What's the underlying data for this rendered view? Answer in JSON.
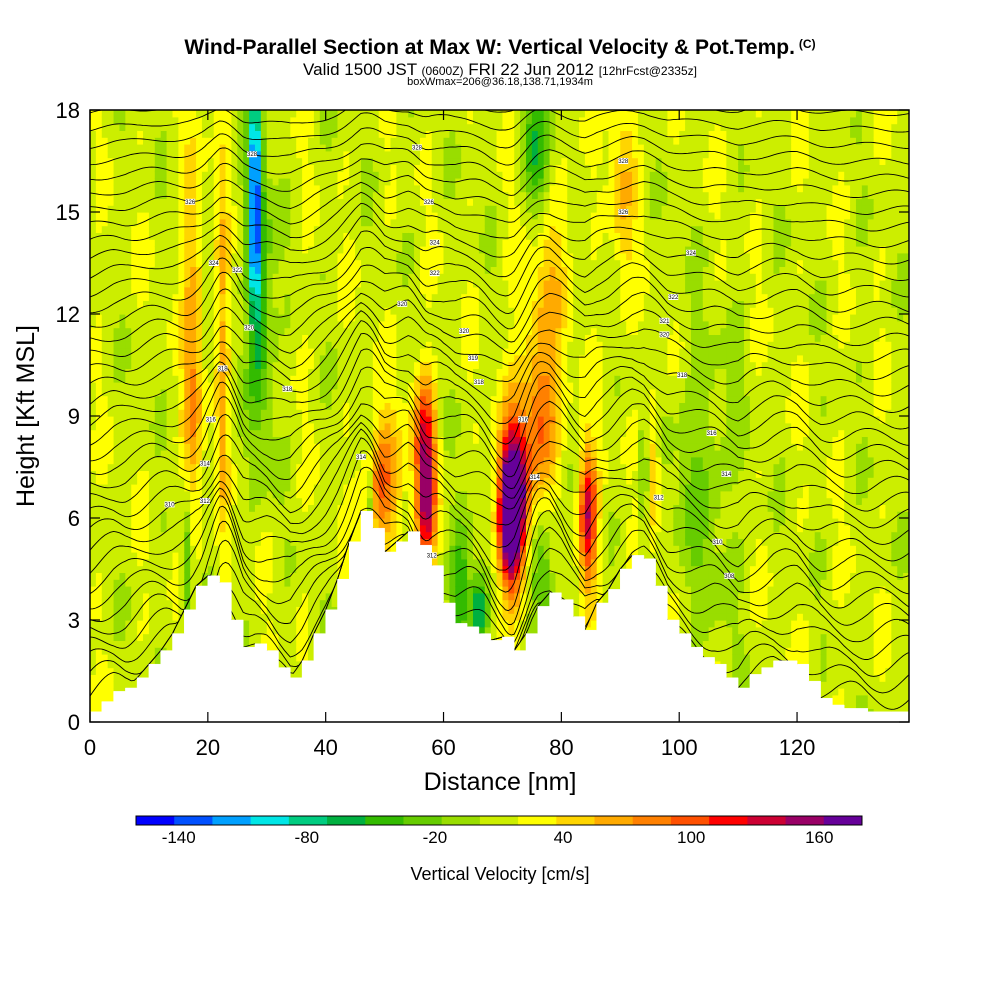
{
  "header": {
    "title": "Wind-Parallel Section at Max W: Vertical Velocity & Pot.Temp.",
    "copyright": "(C)",
    "valid_prefix": "Valid 1500 JST",
    "utc_time": "(0600Z)",
    "valid_date": "FRI 22 Jun 2012",
    "forecast_info": "[12hrFcst@2335z]",
    "box_info": "boxWmax=206@36.18,138.71,1934m"
  },
  "chart_data": {
    "type": "heatmap",
    "xlabel": "Distance [nm]",
    "ylabel": "Height [Kft MSL]",
    "xlim": [
      0,
      139
    ],
    "ylim": [
      0,
      18
    ],
    "x_ticks": [
      0,
      20,
      40,
      60,
      80,
      100,
      120
    ],
    "y_ticks": [
      0,
      3,
      6,
      9,
      12,
      15,
      18
    ],
    "colorbar": {
      "title": "Vertical Velocity [cm/s]",
      "bounds": [
        -160,
        180
      ],
      "labels": [
        -140,
        -80,
        -20,
        40,
        100,
        160
      ],
      "colors": [
        "#0000ff",
        "#0050ff",
        "#00a0ff",
        "#00e6e6",
        "#00cc80",
        "#00b040",
        "#33bb00",
        "#66cc00",
        "#99dd00",
        "#ccee00",
        "#ffff00",
        "#ffd500",
        "#ffaa00",
        "#ff8000",
        "#ff5000",
        "#ff0000",
        "#cc0033",
        "#990066",
        "#660099"
      ]
    },
    "terrain": {
      "x": [
        0,
        2,
        4,
        6,
        8,
        10,
        12,
        14,
        16,
        18,
        20,
        22,
        24,
        26,
        28,
        30,
        32,
        34,
        36,
        38,
        40,
        42,
        44,
        46,
        48,
        50,
        52,
        54,
        56,
        58,
        60,
        62,
        64,
        66,
        68,
        70,
        72,
        74,
        76,
        78,
        80,
        82,
        84,
        86,
        88,
        90,
        92,
        94,
        96,
        98,
        100,
        102,
        104,
        106,
        108,
        110,
        112,
        114,
        116,
        118,
        120,
        122,
        124,
        126,
        128,
        130,
        132,
        134,
        136,
        138
      ],
      "height": [
        0.3,
        0.6,
        0.9,
        1.0,
        1.3,
        1.7,
        2.1,
        2.6,
        3.3,
        4.0,
        4.3,
        4.1,
        3.0,
        2.2,
        2.3,
        2.1,
        1.6,
        1.3,
        1.8,
        2.6,
        3.3,
        4.2,
        5.3,
        6.2,
        5.7,
        5.0,
        5.3,
        5.6,
        5.2,
        4.6,
        3.5,
        2.9,
        2.8,
        2.6,
        2.4,
        2.5,
        2.1,
        2.6,
        3.4,
        3.8,
        3.6,
        3.1,
        2.7,
        3.5,
        3.9,
        4.5,
        4.9,
        4.8,
        4.0,
        3.0,
        2.6,
        2.2,
        1.9,
        1.7,
        1.3,
        1.0,
        1.4,
        1.6,
        1.8,
        1.8,
        1.7,
        1.2,
        0.7,
        0.5,
        0.4,
        0.4,
        0.3,
        0.3,
        0.3,
        0.3
      ]
    },
    "features": [
      {
        "x": 17.5,
        "z": 10.5,
        "w": 60,
        "sx": 1.2,
        "sz": 4.5
      },
      {
        "x": 16.5,
        "z": 4.5,
        "w": -70,
        "sx": 0.7,
        "sz": 1.5
      },
      {
        "x": 22.5,
        "z": 11.0,
        "w": 45,
        "sx": 0.8,
        "sz": 4.0
      },
      {
        "x": 28.0,
        "z": 15.5,
        "w": -140,
        "sx": 0.8,
        "sz": 2.5
      },
      {
        "x": 29.0,
        "z": 12.0,
        "w": -60,
        "sx": 1.5,
        "sz": 3.0
      },
      {
        "x": 47.5,
        "z": 5.5,
        "w": -70,
        "sx": 0.5,
        "sz": 1.5
      },
      {
        "x": 49.5,
        "z": 7.0,
        "w": 80,
        "sx": 2.2,
        "sz": 1.4
      },
      {
        "x": 57.0,
        "z": 6.8,
        "w": 140,
        "sx": 1.2,
        "sz": 1.5
      },
      {
        "x": 56.5,
        "z": 9.0,
        "w": 50,
        "sx": 1.5,
        "sz": 1.2
      },
      {
        "x": 63.0,
        "z": 4.0,
        "w": -70,
        "sx": 1.2,
        "sz": 1.5
      },
      {
        "x": 66.0,
        "z": 3.3,
        "w": -90,
        "sx": 1.0,
        "sz": 0.8
      },
      {
        "x": 71.5,
        "z": 5.8,
        "w": 180,
        "sx": 1.5,
        "sz": 1.4
      },
      {
        "x": 72.0,
        "z": 7.2,
        "w": 110,
        "sx": 1.8,
        "sz": 1.5
      },
      {
        "x": 76.5,
        "z": 8.8,
        "w": 70,
        "sx": 2.0,
        "sz": 1.4
      },
      {
        "x": 84.5,
        "z": 6.0,
        "w": 130,
        "sx": 1.1,
        "sz": 1.4
      },
      {
        "x": 77.0,
        "z": 13.5,
        "w": 50,
        "sx": 3.0,
        "sz": 3.0
      },
      {
        "x": 77.0,
        "z": 4.3,
        "w": -50,
        "sx": 1.5,
        "sz": 1.2
      },
      {
        "x": 76.0,
        "z": 16.5,
        "w": -80,
        "sx": 2.0,
        "sz": 2.0
      },
      {
        "x": 95.5,
        "z": 7.5,
        "w": 50,
        "sx": 1.0,
        "sz": 1.5
      },
      {
        "x": 94.0,
        "z": 7.0,
        "w": -50,
        "sx": 0.6,
        "sz": 1.5
      },
      {
        "x": 90.5,
        "z": 16.0,
        "w": 40,
        "sx": 1.5,
        "sz": 2.5
      },
      {
        "x": 104.0,
        "z": 7.0,
        "w": -30,
        "sx": 4.0,
        "sz": 3.0
      }
    ],
    "pot_temp_labels": [
      {
        "x": 13.5,
        "z": 6.4,
        "text": "310"
      },
      {
        "x": 19.5,
        "z": 6.5,
        "text": "312"
      },
      {
        "x": 19.5,
        "z": 7.6,
        "text": "314"
      },
      {
        "x": 20.5,
        "z": 8.9,
        "text": "316"
      },
      {
        "x": 22.5,
        "z": 10.4,
        "text": "318"
      },
      {
        "x": 27.0,
        "z": 11.6,
        "text": "320"
      },
      {
        "x": 25.0,
        "z": 13.3,
        "text": "322"
      },
      {
        "x": 21.0,
        "z": 13.5,
        "text": "324"
      },
      {
        "x": 17.0,
        "z": 15.3,
        "text": "326"
      },
      {
        "x": 27.5,
        "z": 16.7,
        "text": "328"
      },
      {
        "x": 33.5,
        "z": 9.8,
        "text": "318"
      },
      {
        "x": 46.0,
        "z": 7.8,
        "text": "314"
      },
      {
        "x": 53.0,
        "z": 12.3,
        "text": "320"
      },
      {
        "x": 58.0,
        "z": 4.9,
        "text": "312"
      },
      {
        "x": 58.5,
        "z": 13.2,
        "text": "322"
      },
      {
        "x": 58.5,
        "z": 14.1,
        "text": "324"
      },
      {
        "x": 57.5,
        "z": 15.3,
        "text": "326"
      },
      {
        "x": 55.5,
        "z": 16.9,
        "text": "328"
      },
      {
        "x": 63.5,
        "z": 11.5,
        "text": "320"
      },
      {
        "x": 65.0,
        "z": 10.7,
        "text": "319"
      },
      {
        "x": 66.0,
        "z": 10.0,
        "text": "318"
      },
      {
        "x": 73.5,
        "z": 8.9,
        "text": "316"
      },
      {
        "x": 75.5,
        "z": 7.2,
        "text": "314"
      },
      {
        "x": 90.5,
        "z": 16.5,
        "text": "328"
      },
      {
        "x": 90.5,
        "z": 15.0,
        "text": "326"
      },
      {
        "x": 96.5,
        "z": 6.6,
        "text": "312"
      },
      {
        "x": 97.5,
        "z": 11.4,
        "text": "320"
      },
      {
        "x": 97.5,
        "z": 11.8,
        "text": "321"
      },
      {
        "x": 99.0,
        "z": 12.5,
        "text": "322"
      },
      {
        "x": 102.0,
        "z": 13.8,
        "text": "324"
      },
      {
        "x": 100.5,
        "z": 10.2,
        "text": "318"
      },
      {
        "x": 105.5,
        "z": 8.5,
        "text": "316"
      },
      {
        "x": 108.0,
        "z": 7.3,
        "text": "314"
      },
      {
        "x": 106.5,
        "z": 5.3,
        "text": "310"
      },
      {
        "x": 108.5,
        "z": 4.3,
        "text": "308"
      }
    ]
  }
}
